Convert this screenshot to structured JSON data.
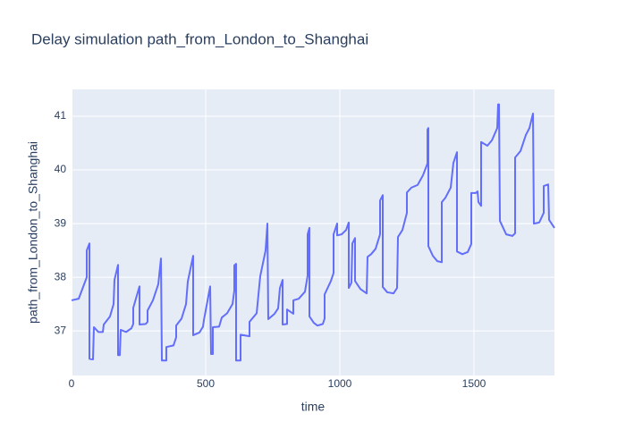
{
  "chart_data": {
    "type": "line",
    "title": "Delay simulation path_from_London_to_Shanghai",
    "x_label": "time",
    "y_label": "path_from_London_to_Shanghai",
    "xlim": [
      0,
      1800
    ],
    "ylim": [
      36.17,
      41.5
    ],
    "xticks": [
      0,
      500,
      1000,
      1500
    ],
    "yticks": [
      37,
      38,
      39,
      40,
      41
    ],
    "grid": true,
    "series": [
      {
        "name": "path_from_London_to_Shanghai",
        "color": "#636efa",
        "x": [
          0,
          26.7,
          56.7,
          56.7,
          66.7,
          66.7,
          80,
          83.3,
          100,
          116.7,
          120,
          143.3,
          156.7,
          160,
          173.3,
          173.3,
          180,
          183.3,
          203.3,
          223.3,
          230,
          230,
          253.3,
          253.3,
          276.7,
          283.3,
          283.3,
          303.3,
          323.3,
          333.3,
          336.7,
          353.3,
          353.3,
          380,
          390,
          390,
          410,
          426.7,
          433.3,
          453.3,
          453.3,
          476.7,
          490,
          493.3,
          516.7,
          520,
          526.7,
          526.7,
          550,
          560,
          580,
          600,
          606.7,
          606.7,
          613.3,
          613.3,
          630,
          630,
          663.3,
          663.3,
          690,
          703.3,
          723.3,
          730,
          733.3,
          756.7,
          770,
          776.7,
          786.7,
          786.7,
          803.3,
          803.3,
          826.7,
          826.7,
          846.7,
          870,
          880,
          880,
          886.7,
          886.7,
          903.3,
          916.7,
          936.7,
          943.3,
          943.3,
          966.7,
          976.7,
          976.7,
          990,
          990,
          1006.7,
          1023.3,
          1033.3,
          1033.3,
          1043.3,
          1046.7,
          1056.7,
          1056.7,
          1076.7,
          1100,
          1103.3,
          1116.7,
          1133.3,
          1150,
          1150,
          1160,
          1160,
          1176.7,
          1200,
          1213.3,
          1216.7,
          1233.3,
          1250,
          1250,
          1266.7,
          1290,
          1310,
          1326.7,
          1326.7,
          1330,
          1330,
          1346.7,
          1363.3,
          1380,
          1380,
          1393.3,
          1413.3,
          1423.3,
          1436.7,
          1436.7,
          1456.7,
          1476.7,
          1490,
          1490,
          1506.7,
          1513.3,
          1516.7,
          1526.7,
          1526.7,
          1550,
          1566.7,
          1586.7,
          1590,
          1593.3,
          1596.7,
          1620,
          1643.3,
          1653.3,
          1653.3,
          1673.3,
          1693.3,
          1706.7,
          1720,
          1723.3,
          1743.3,
          1760,
          1760,
          1776.7,
          1780,
          1800
        ],
        "values": [
          37.57,
          37.6,
          38.0,
          38.5,
          38.63,
          36.48,
          36.47,
          37.07,
          36.98,
          36.98,
          37.12,
          37.27,
          37.5,
          37.95,
          38.23,
          36.55,
          36.55,
          37.02,
          36.98,
          37.05,
          37.13,
          37.43,
          37.83,
          37.12,
          37.13,
          37.17,
          37.38,
          37.57,
          37.87,
          38.35,
          36.45,
          36.45,
          36.7,
          36.73,
          36.88,
          37.1,
          37.23,
          37.5,
          37.92,
          38.4,
          36.92,
          36.97,
          37.08,
          37.2,
          37.83,
          36.57,
          36.57,
          37.07,
          37.08,
          37.25,
          37.33,
          37.5,
          37.75,
          38.22,
          38.25,
          36.45,
          36.45,
          36.93,
          36.9,
          37.17,
          37.33,
          38.02,
          38.5,
          39.0,
          37.22,
          37.32,
          37.42,
          37.8,
          37.95,
          37.12,
          37.13,
          37.4,
          37.32,
          37.57,
          37.6,
          37.73,
          38.03,
          38.8,
          38.92,
          37.27,
          37.15,
          37.1,
          37.13,
          37.23,
          37.68,
          37.93,
          38.08,
          38.8,
          39.0,
          38.78,
          38.8,
          38.88,
          39.02,
          37.8,
          37.9,
          38.63,
          38.73,
          37.93,
          37.78,
          37.7,
          38.38,
          38.43,
          38.53,
          38.8,
          39.43,
          39.53,
          37.82,
          37.72,
          37.7,
          37.8,
          38.75,
          38.88,
          39.2,
          39.58,
          39.67,
          39.72,
          39.9,
          40.12,
          40.75,
          40.78,
          38.58,
          38.4,
          38.3,
          38.28,
          39.4,
          39.48,
          39.67,
          40.13,
          40.33,
          38.48,
          38.43,
          38.47,
          38.62,
          39.57,
          39.57,
          39.6,
          39.4,
          39.33,
          40.52,
          40.45,
          40.55,
          40.78,
          41.22,
          41.22,
          39.05,
          38.8,
          38.77,
          38.82,
          40.23,
          40.35,
          40.65,
          40.78,
          41.05,
          39.0,
          39.02,
          39.2,
          39.7,
          39.73,
          39.07,
          38.92
        ]
      }
    ]
  }
}
